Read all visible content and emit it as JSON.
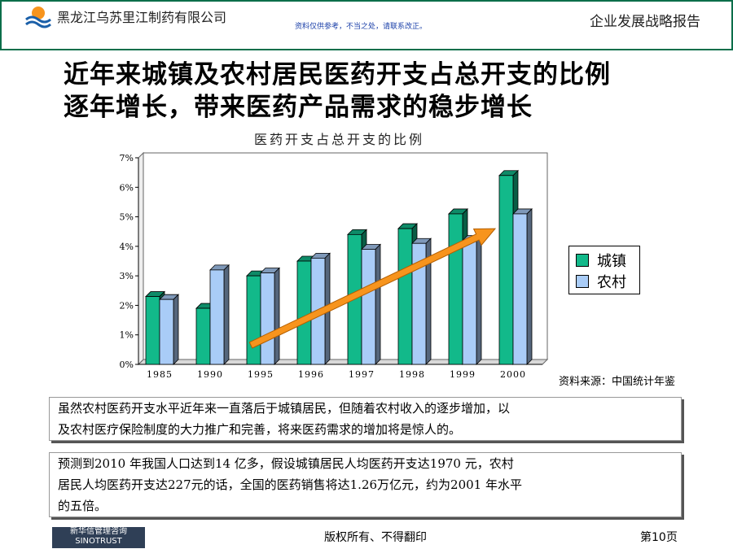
{
  "header": {
    "company": "黑龙江乌苏里江制药有限公司",
    "note": "资料仅供参考，不当之处，请联系改正。",
    "report_title": "企业发展战略报告"
  },
  "headline": {
    "line1": "近年来城镇及农村居民医药开支占总开支的比例",
    "line2": "逐年增长，带来医药产品需求的稳步增长"
  },
  "colors": {
    "urban": "#12b98a",
    "rural": "#a9ccf7",
    "arrow": "#f7941d",
    "frame": "#0a6e4a"
  },
  "chart_data": {
    "type": "bar",
    "title": "医药开支占总开支的比例",
    "categories": [
      "1985",
      "1990",
      "1995",
      "1996",
      "1997",
      "1998",
      "1999",
      "2000"
    ],
    "series": [
      {
        "name": "城镇",
        "values": [
          2.3,
          1.9,
          3.0,
          3.5,
          4.4,
          4.6,
          5.1,
          6.4
        ]
      },
      {
        "name": "农村",
        "values": [
          2.2,
          3.2,
          3.1,
          3.6,
          3.9,
          4.1,
          4.2,
          5.1
        ]
      }
    ],
    "y_ticks": [
      "0%",
      "1%",
      "2%",
      "3%",
      "4%",
      "5%",
      "6%",
      "7%"
    ],
    "ylim": [
      0,
      7
    ],
    "grid": false,
    "legend_position": "right",
    "annotation": "trend-arrow"
  },
  "source": "资料来源：中国统计年鉴",
  "text_box_1": {
    "line1": "虽然农村医药开支水平近年来一直落后于城镇居民，但随着农村收入的逐步增加，以",
    "line2": "及农村医疗保险制度的大力推广和完善，将来医药需求的增加将是惊人的。"
  },
  "text_box_2": {
    "line1": "预测到2010 年我国人口达到14 亿多，假设城镇居民人均医药开支达1970 元，农村",
    "line2": "居民人均医药开支达227元的话，全国的医药销售将达1.26万亿元，约为2001 年水平",
    "line3": "的五倍。"
  },
  "footer": {
    "logo_cn": "新华信管理咨询",
    "logo_en": "SINOTRUST",
    "copyright": "版权所有、不得翻印",
    "page": "第10页"
  }
}
